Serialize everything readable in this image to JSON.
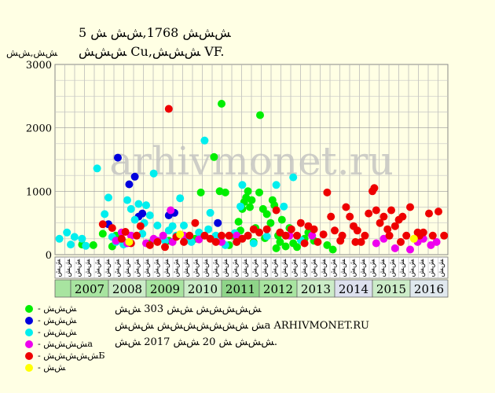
{
  "chart_data": {
    "type": "scatter",
    "title": "5 ﺶﺶﺶ 1768,ﺶﺶ ﺶ",
    "subtitle": "ﺶﺶﺶ Cu,ﺶﺶﺶ VF.",
    "ylabel": "ﺶﺶ,ﺶﺶ",
    "ylim": [
      0,
      3000
    ],
    "yticks": [
      "0",
      "1000",
      "2000",
      "3000"
    ],
    "grid": true,
    "watermark": "arhivmonet.ru",
    "years": [
      {
        "label": "2007",
        "color": "#a8e4a0"
      },
      {
        "label": "2008",
        "color": "#ccecc8"
      },
      {
        "label": "2009",
        "color": "#a8e4a0"
      },
      {
        "label": "2010",
        "color": "#ccecc8"
      },
      {
        "label": "2011",
        "color": "#8ed488"
      },
      {
        "label": "2012",
        "color": "#a8e4a0"
      },
      {
        "label": "2013",
        "color": "#ccecc8"
      },
      {
        "label": "2014",
        "color": "#dde0ee"
      },
      {
        "label": "2015",
        "color": "#ccecc8"
      },
      {
        "label": "2016",
        "color": "#e0e8ee"
      }
    ],
    "month_labels": [
      "ﺶﺶ",
      "ﺶﺶ",
      "ﺶﺶ",
      "ﺶﺶ"
    ],
    "series": [
      {
        "name": "ﺶﺶﺶ",
        "color": "#00ee00",
        "points": [
          [
            2007.3,
            160
          ],
          [
            2007.6,
            150
          ],
          [
            2007.85,
            330
          ],
          [
            2008.1,
            130
          ],
          [
            2008.2,
            300
          ],
          [
            2008.4,
            200
          ],
          [
            2009.1,
            180
          ],
          [
            2009.6,
            220
          ],
          [
            2010.3,
            250
          ],
          [
            2010.45,
            980
          ],
          [
            2010.8,
            1540
          ],
          [
            2010.95,
            1000
          ],
          [
            2011.0,
            2380
          ],
          [
            2011.1,
            980
          ],
          [
            2011.3,
            300
          ],
          [
            2011.45,
            520
          ],
          [
            2011.55,
            720
          ],
          [
            2011.6,
            830
          ],
          [
            2011.65,
            900
          ],
          [
            2011.7,
            1000
          ],
          [
            2011.75,
            750
          ],
          [
            2011.8,
            860
          ],
          [
            2011.9,
            420
          ],
          [
            2012.0,
            980
          ],
          [
            2012.02,
            2200
          ],
          [
            2012.1,
            720
          ],
          [
            2012.2,
            640
          ],
          [
            2012.3,
            500
          ],
          [
            2012.35,
            860
          ],
          [
            2012.4,
            780
          ],
          [
            2012.5,
            300
          ],
          [
            2012.55,
            200
          ],
          [
            2012.6,
            550
          ],
          [
            2012.7,
            130
          ],
          [
            2012.8,
            420
          ],
          [
            2012.9,
            180
          ],
          [
            2013.0,
            120
          ],
          [
            2013.2,
            250
          ],
          [
            2013.45,
            220
          ],
          [
            2013.8,
            150
          ],
          [
            2013.95,
            80
          ],
          [
            2011.2,
            150
          ],
          [
            2011.4,
            200
          ],
          [
            2011.5,
            380
          ],
          [
            2012.15,
            260
          ],
          [
            2012.45,
            100
          ],
          [
            2013.3,
            350
          ],
          [
            2011.85,
            200
          ]
        ]
      },
      {
        "name": "ﺶﺶﺶ",
        "color": "#0000dd",
        "points": [
          [
            2008.0,
            480
          ],
          [
            2008.25,
            1530
          ],
          [
            2008.55,
            1110
          ],
          [
            2008.7,
            1230
          ],
          [
            2008.8,
            600
          ],
          [
            2008.9,
            650
          ],
          [
            2009.6,
            620
          ],
          [
            2009.75,
            660
          ],
          [
            2010.9,
            500
          ]
        ]
      },
      {
        "name": "ﺶﺶﺶ",
        "color": "#00eeee",
        "points": [
          [
            2006.7,
            250
          ],
          [
            2006.9,
            350
          ],
          [
            2007.0,
            160
          ],
          [
            2007.1,
            280
          ],
          [
            2007.3,
            250
          ],
          [
            2007.4,
            140
          ],
          [
            2007.7,
            1360
          ],
          [
            2007.9,
            640
          ],
          [
            2008.0,
            900
          ],
          [
            2008.1,
            280
          ],
          [
            2008.2,
            200
          ],
          [
            2008.4,
            160
          ],
          [
            2008.5,
            860
          ],
          [
            2008.6,
            720
          ],
          [
            2008.7,
            550
          ],
          [
            2008.8,
            800
          ],
          [
            2008.9,
            330
          ],
          [
            2009.0,
            780
          ],
          [
            2009.1,
            620
          ],
          [
            2009.2,
            1280
          ],
          [
            2009.3,
            460
          ],
          [
            2009.5,
            220
          ],
          [
            2009.6,
            380
          ],
          [
            2009.8,
            300
          ],
          [
            2009.9,
            890
          ],
          [
            2010.0,
            460
          ],
          [
            2010.1,
            250
          ],
          [
            2010.2,
            200
          ],
          [
            2010.4,
            350
          ],
          [
            2010.55,
            1800
          ],
          [
            2010.7,
            660
          ],
          [
            2010.85,
            300
          ],
          [
            2011.1,
            150
          ],
          [
            2011.35,
            340
          ],
          [
            2011.5,
            760
          ],
          [
            2011.55,
            1100
          ],
          [
            2011.7,
            300
          ],
          [
            2011.85,
            180
          ],
          [
            2012.2,
            290
          ],
          [
            2012.45,
            1100
          ],
          [
            2012.65,
            760
          ],
          [
            2012.9,
            1220
          ],
          [
            2013.1,
            230
          ],
          [
            2008.95,
            500
          ],
          [
            2009.7,
            450
          ],
          [
            2010.65,
            400
          ]
        ]
      },
      {
        "name": "ﺶﺶﺶﺶa",
        "color": "#ee00ee",
        "points": [
          [
            2008.2,
            220
          ],
          [
            2008.5,
            180
          ],
          [
            2008.6,
            300
          ],
          [
            2009.0,
            180
          ],
          [
            2009.3,
            220
          ],
          [
            2009.45,
            300
          ],
          [
            2009.65,
            700
          ],
          [
            2009.7,
            200
          ],
          [
            2010.0,
            300
          ],
          [
            2010.4,
            240
          ],
          [
            2011.0,
            200
          ],
          [
            2011.4,
            300
          ],
          [
            2012.8,
            300
          ],
          [
            2013.4,
            300
          ],
          [
            2015.3,
            250
          ],
          [
            2015.6,
            100
          ],
          [
            2016.0,
            80
          ],
          [
            2016.2,
            200
          ],
          [
            2016.35,
            250
          ],
          [
            2016.55,
            150
          ],
          [
            2016.7,
            200
          ],
          [
            2008.35,
            350
          ],
          [
            2009.2,
            250
          ],
          [
            2015.1,
            180
          ]
        ]
      },
      {
        "name": "ﺶﺶﺶﺶﺶБ",
        "color": "#ee0000",
        "points": [
          [
            2007.85,
            480
          ],
          [
            2008.1,
            420
          ],
          [
            2008.35,
            250
          ],
          [
            2008.45,
            360
          ],
          [
            2008.6,
            180
          ],
          [
            2008.75,
            300
          ],
          [
            2008.85,
            450
          ],
          [
            2009.1,
            150
          ],
          [
            2009.3,
            200
          ],
          [
            2009.5,
            120
          ],
          [
            2009.6,
            2300
          ],
          [
            2009.8,
            280
          ],
          [
            2010.0,
            200
          ],
          [
            2010.15,
            300
          ],
          [
            2010.3,
            500
          ],
          [
            2010.55,
            300
          ],
          [
            2010.7,
            250
          ],
          [
            2010.85,
            200
          ],
          [
            2011.0,
            300
          ],
          [
            2011.2,
            300
          ],
          [
            2011.4,
            200
          ],
          [
            2011.55,
            250
          ],
          [
            2011.7,
            300
          ],
          [
            2011.85,
            400
          ],
          [
            2012.0,
            350
          ],
          [
            2012.2,
            400
          ],
          [
            2012.45,
            700
          ],
          [
            2012.55,
            350
          ],
          [
            2012.7,
            300
          ],
          [
            2012.85,
            400
          ],
          [
            2013.0,
            300
          ],
          [
            2013.1,
            500
          ],
          [
            2013.3,
            450
          ],
          [
            2013.45,
            400
          ],
          [
            2013.55,
            200
          ],
          [
            2013.7,
            320
          ],
          [
            2013.8,
            980
          ],
          [
            2013.9,
            600
          ],
          [
            2014.0,
            380
          ],
          [
            2014.2,
            300
          ],
          [
            2014.3,
            750
          ],
          [
            2014.4,
            600
          ],
          [
            2014.5,
            450
          ],
          [
            2014.6,
            380
          ],
          [
            2014.7,
            200
          ],
          [
            2014.8,
            300
          ],
          [
            2014.9,
            650
          ],
          [
            2015.0,
            1000
          ],
          [
            2015.05,
            1050
          ],
          [
            2015.1,
            700
          ],
          [
            2015.2,
            500
          ],
          [
            2015.3,
            600
          ],
          [
            2015.4,
            400
          ],
          [
            2015.5,
            700
          ],
          [
            2015.6,
            450
          ],
          [
            2015.7,
            550
          ],
          [
            2015.8,
            600
          ],
          [
            2015.9,
            300
          ],
          [
            2016.0,
            750
          ],
          [
            2016.2,
            350
          ],
          [
            2016.35,
            350
          ],
          [
            2016.5,
            650
          ],
          [
            2016.6,
            300
          ],
          [
            2016.75,
            680
          ],
          [
            2016.9,
            300
          ],
          [
            2013.2,
            180
          ],
          [
            2014.15,
            220
          ],
          [
            2014.55,
            200
          ],
          [
            2015.45,
            300
          ],
          [
            2015.75,
            200
          ],
          [
            2016.25,
            300
          ]
        ]
      },
      {
        "name": "ﺶﺶ",
        "color": "#ffff00",
        "points": [
          [
            2008.55,
            200
          ],
          [
            2009.9,
            320
          ],
          [
            2016.1,
            250
          ]
        ]
      }
    ]
  },
  "notes": [
    "ﺶﺶﺶﺶﺶ ﺶﺶ 303 ﺶﺶ",
    "ﺶ ﺶﺶﺶﺶﺶﺶﺶ ﺶﺶﺶa ARHIVMONET.RU",
    "ﺶﺶﺶ ﺶ 20 ﺶﺶ 2017 ﺶﺶ."
  ]
}
